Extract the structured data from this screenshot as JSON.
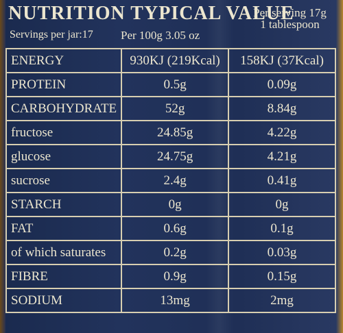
{
  "header": {
    "title": "NUTRITION TYPICAL VALUE",
    "per_serving_line1": "Per serving 17g",
    "per_serving_line2": "1 tablespoon",
    "servings_per_jar": "Servings per jar:17",
    "per_100g": "Per 100g 3.05 oz"
  },
  "rows": [
    {
      "name": "ENERGY",
      "per100": "930KJ (219Kcal)",
      "perServing": "158KJ (37Kcal)"
    },
    {
      "name": "PROTEIN",
      "per100": "0.5g",
      "perServing": "0.09g"
    },
    {
      "name": "CARBOHYDRATE",
      "per100": "52g",
      "perServing": "8.84g"
    },
    {
      "name": "fructose",
      "per100": "24.85g",
      "perServing": "4.22g"
    },
    {
      "name": "glucose",
      "per100": "24.75g",
      "perServing": "4.21g"
    },
    {
      "name": "sucrose",
      "per100": "2.4g",
      "perServing": "0.41g"
    },
    {
      "name": "STARCH",
      "per100": "0g",
      "perServing": "0g"
    },
    {
      "name": "FAT",
      "per100": "0.6g",
      "perServing": "0.1g"
    },
    {
      "name": "of which saturates",
      "per100": "0.2g",
      "perServing": "0.03g"
    },
    {
      "name": "FIBRE",
      "per100": "0.9g",
      "perServing": "0.15g"
    },
    {
      "name": "SODIUM",
      "per100": "13mg",
      "perServing": "2mg"
    }
  ],
  "colors": {
    "label_background": "#1d2d52",
    "text": "#ece6cf",
    "grid_lines": "#d8cfb1"
  }
}
